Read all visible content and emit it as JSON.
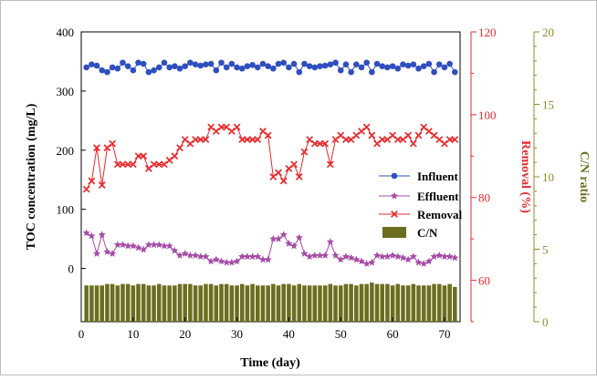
{
  "chart_data": {
    "type": "scatter",
    "xlabel": "Time (day)",
    "ylabel_left": "TOC concentration (mg/L)",
    "ylabel_removal": "Removal (%)",
    "ylabel_cn": "C/N ratio",
    "xlim": [
      0,
      73
    ],
    "ylim_left": [
      -90,
      400
    ],
    "ylim_removal": [
      50,
      120
    ],
    "ylim_cn": [
      0,
      20
    ],
    "x_ticks": [
      "0",
      "10",
      "20",
      "30",
      "40",
      "50",
      "60",
      "70"
    ],
    "y_left_ticks": [
      "0",
      "100",
      "200",
      "300",
      "400"
    ],
    "y_removal_ticks": [
      "60",
      "80",
      "100",
      "120"
    ],
    "y_cn_ticks": [
      "0",
      "5",
      "10",
      "15",
      "20"
    ],
    "legend_position": "center-right",
    "colors": {
      "influent": "#2f4fbf",
      "effluent": "#a64ca6",
      "removal": "#e8292b",
      "cn": "#6b6e1f",
      "cn_axis": "#8c8c2a"
    },
    "days": [
      1,
      2,
      3,
      4,
      5,
      6,
      7,
      8,
      9,
      10,
      11,
      12,
      13,
      14,
      15,
      16,
      17,
      18,
      19,
      20,
      21,
      22,
      23,
      24,
      25,
      26,
      27,
      28,
      29,
      30,
      31,
      32,
      33,
      34,
      35,
      36,
      37,
      38,
      39,
      40,
      41,
      42,
      43,
      44,
      45,
      46,
      47,
      48,
      49,
      50,
      51,
      52,
      53,
      54,
      55,
      56,
      57,
      58,
      59,
      60,
      61,
      62,
      63,
      64,
      65,
      66,
      67,
      68,
      69,
      70,
      71,
      72
    ],
    "series": [
      {
        "name": "Influent",
        "axis": "left",
        "marker": "circle",
        "values": [
          340,
          345,
          343,
          335,
          332,
          340,
          338,
          348,
          342,
          335,
          348,
          346,
          332,
          335,
          340,
          348,
          340,
          342,
          338,
          342,
          348,
          345,
          343,
          345,
          346,
          335,
          348,
          340,
          346,
          340,
          338,
          342,
          344,
          340,
          346,
          342,
          338,
          346,
          348,
          340,
          346,
          332,
          346,
          342,
          340,
          342,
          343,
          345,
          348,
          335,
          345,
          332,
          345,
          340,
          348,
          332,
          346,
          342,
          340,
          342,
          338,
          345,
          343,
          345,
          338,
          342,
          346,
          332,
          345,
          340,
          346,
          332
        ]
      },
      {
        "name": "Effluent",
        "axis": "left",
        "marker": "star",
        "values": [
          60,
          55,
          25,
          57,
          28,
          25,
          40,
          40,
          38,
          38,
          35,
          32,
          40,
          40,
          40,
          38,
          38,
          30,
          22,
          25,
          22,
          22,
          20,
          20,
          12,
          15,
          12,
          10,
          10,
          12,
          20,
          20,
          20,
          20,
          15,
          15,
          50,
          50,
          57,
          42,
          38,
          52,
          25,
          20,
          22,
          22,
          22,
          45,
          22,
          15,
          20,
          18,
          15,
          12,
          8,
          10,
          22,
          20,
          20,
          22,
          20,
          18,
          15,
          20,
          10,
          8,
          12,
          20,
          22,
          20,
          20,
          18
        ]
      },
      {
        "name": "Removal",
        "axis": "removal",
        "marker": "x",
        "values": [
          82,
          84,
          92,
          83,
          92,
          93,
          88,
          88,
          88,
          88,
          90,
          90,
          87,
          88,
          88,
          88,
          89,
          90,
          92,
          94,
          93,
          94,
          94,
          94,
          97,
          96,
          97,
          97,
          96,
          97,
          94,
          94,
          94,
          94,
          96,
          95,
          85,
          86,
          84,
          87,
          88,
          85,
          91,
          94,
          93,
          93,
          93,
          88,
          94,
          95,
          94,
          94,
          95,
          96,
          97,
          95,
          93,
          94,
          94,
          95,
          94,
          94,
          95,
          93,
          95,
          97,
          96,
          95,
          94,
          93,
          94,
          94
        ]
      },
      {
        "name": "C/N",
        "axis": "cn",
        "marker": "bar",
        "values": [
          2.5,
          2.5,
          2.5,
          2.5,
          2.6,
          2.6,
          2.5,
          2.6,
          2.6,
          2.5,
          2.6,
          2.6,
          2.5,
          2.5,
          2.6,
          2.5,
          2.5,
          2.5,
          2.6,
          2.6,
          2.6,
          2.5,
          2.5,
          2.6,
          2.6,
          2.5,
          2.6,
          2.6,
          2.5,
          2.5,
          2.6,
          2.5,
          2.6,
          2.5,
          2.5,
          2.5,
          2.6,
          2.5,
          2.6,
          2.6,
          2.5,
          2.6,
          2.5,
          2.5,
          2.5,
          2.5,
          2.5,
          2.6,
          2.5,
          2.5,
          2.6,
          2.6,
          2.5,
          2.6,
          2.6,
          2.7,
          2.6,
          2.6,
          2.6,
          2.5,
          2.6,
          2.5,
          2.5,
          2.6,
          2.5,
          2.5,
          2.5,
          2.6,
          2.6,
          2.5,
          2.6,
          2.4
        ]
      }
    ]
  }
}
